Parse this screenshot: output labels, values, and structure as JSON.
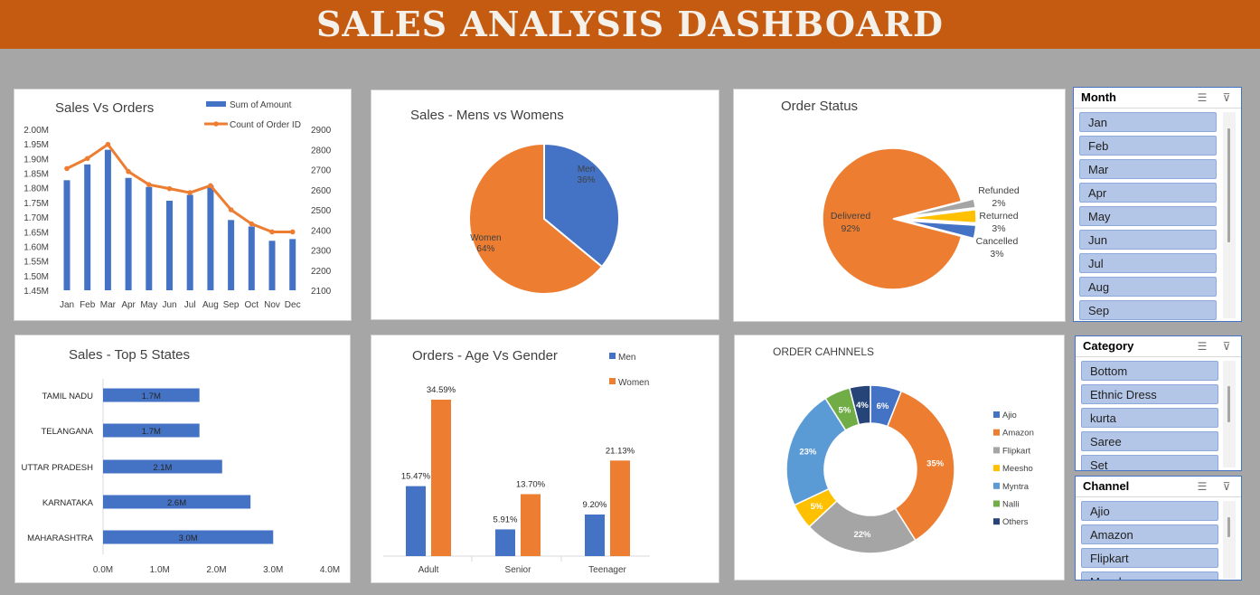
{
  "dashboard": {
    "title": "SALES ANALYSIS DASHBOARD"
  },
  "colors": {
    "banner": "#c55a11",
    "blue": "#4472c4",
    "orange": "#ed7d31",
    "gray": "#a5a5a5",
    "yellow": "#ffc000",
    "lightblue": "#5b9bd5",
    "green": "#70ad47",
    "navy": "#264478"
  },
  "chart_data": [
    {
      "id": "sales-vs-orders",
      "type": "bar",
      "title": "Sales Vs Orders",
      "categories": [
        "Jan",
        "Feb",
        "Mar",
        "Apr",
        "May",
        "Jun",
        "Jul",
        "Aug",
        "Sep",
        "Oct",
        "Nov",
        "Dec"
      ],
      "series": [
        {
          "name": "Sum of Amount",
          "type": "bar",
          "axis": "left",
          "values": [
            1826000,
            1880000,
            1930000,
            1834000,
            1803000,
            1756000,
            1776000,
            1808000,
            1690000,
            1668000,
            1619000,
            1625000
          ]
        },
        {
          "name": "Count of Order ID",
          "type": "line",
          "axis": "right",
          "values": [
            2705,
            2755,
            2825,
            2690,
            2625,
            2605,
            2585,
            2620,
            2500,
            2430,
            2390,
            2390
          ]
        }
      ],
      "y_left": {
        "min": 1450000,
        "max": 2000000,
        "ticks": [
          "2.00M",
          "1.95M",
          "1.90M",
          "1.85M",
          "1.80M",
          "1.75M",
          "1.70M",
          "1.65M",
          "1.60M",
          "1.55M",
          "1.50M",
          "1.45M"
        ]
      },
      "y_right": {
        "min": 2100,
        "max": 2900,
        "ticks": [
          "2900",
          "2800",
          "2700",
          "2600",
          "2500",
          "2400",
          "2300",
          "2200",
          "2100"
        ]
      },
      "legend": "top-right"
    },
    {
      "id": "sales-men-women",
      "type": "pie",
      "title": "Sales - Mens vs Womens",
      "slices": [
        {
          "label": "Men",
          "value": 36,
          "display": "36%"
        },
        {
          "label": "Women",
          "value": 64,
          "display": "64%"
        }
      ]
    },
    {
      "id": "order-status",
      "type": "pie",
      "title": "Order Status",
      "slices": [
        {
          "label": "Delivered",
          "value": 92,
          "display": "92%"
        },
        {
          "label": "Refunded",
          "value": 2,
          "display": "2%"
        },
        {
          "label": "Returned",
          "value": 3,
          "display": "3%"
        },
        {
          "label": "Cancelled",
          "value": 3,
          "display": "3%"
        }
      ]
    },
    {
      "id": "top-5-states",
      "type": "bar",
      "orientation": "horizontal",
      "title": "Sales - Top 5 States",
      "categories": [
        "TAMIL NADU",
        "TELANGANA",
        "UTTAR PRADESH",
        "KARNATAKA",
        "MAHARASHTRA"
      ],
      "values": [
        1.7,
        1.7,
        2.1,
        2.6,
        3.0
      ],
      "data_labels": [
        "1.7M",
        "1.7M",
        "2.1M",
        "2.6M",
        "3.0M"
      ],
      "x_ticks": [
        "0.0M",
        "1.0M",
        "2.0M",
        "3.0M",
        "4.0M"
      ],
      "xlim": [
        0,
        4
      ]
    },
    {
      "id": "orders-age-gender",
      "type": "bar",
      "title": "Orders - Age Vs Gender",
      "categories": [
        "Adult",
        "Senior",
        "Teenager"
      ],
      "series": [
        {
          "name": "Men",
          "values": [
            15.47,
            5.91,
            9.2
          ],
          "labels": [
            "15.47%",
            "5.91%",
            "9.20%"
          ]
        },
        {
          "name": "Women",
          "values": [
            34.59,
            13.7,
            21.13
          ],
          "labels": [
            "34.59%",
            "13.70%",
            "21.13%"
          ]
        }
      ],
      "legend": "top-right"
    },
    {
      "id": "order-channels",
      "type": "pie",
      "variant": "doughnut",
      "title": "ORDER CAHNNELS",
      "slices": [
        {
          "label": "Ajio",
          "value": 6,
          "display": "6%"
        },
        {
          "label": "Amazon",
          "value": 35,
          "display": "35%"
        },
        {
          "label": "Flipkart",
          "value": 22,
          "display": "22%"
        },
        {
          "label": "Meesho",
          "value": 5,
          "display": "5%"
        },
        {
          "label": "Myntra",
          "value": 23,
          "display": "23%"
        },
        {
          "label": "Nalli",
          "value": 5,
          "display": "5%"
        },
        {
          "label": "Others",
          "value": 4,
          "display": "4%"
        }
      ],
      "legend": "right"
    }
  ],
  "slicers": {
    "month": {
      "title": "Month",
      "items": [
        "Jan",
        "Feb",
        "Mar",
        "Apr",
        "May",
        "Jun",
        "Jul",
        "Aug",
        "Sep"
      ]
    },
    "category": {
      "title": "Category",
      "items": [
        "Bottom",
        "Ethnic Dress",
        "kurta",
        "Saree",
        "Set"
      ]
    },
    "channel": {
      "title": "Channel",
      "items": [
        "Ajio",
        "Amazon",
        "Flipkart",
        "Meesho"
      ]
    }
  }
}
